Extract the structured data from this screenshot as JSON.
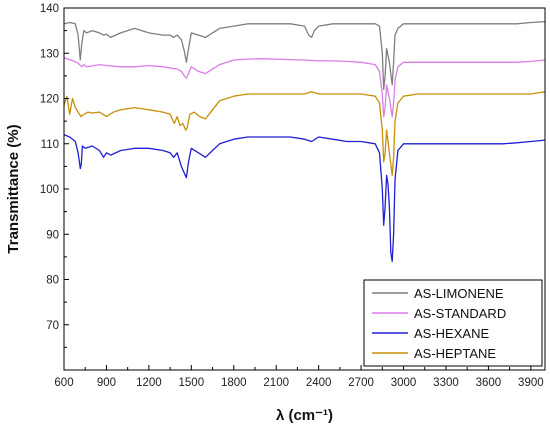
{
  "chart_data": {
    "type": "line",
    "xlabel": "λ (cm⁻¹)",
    "ylabel": "Transmittance (%)",
    "xlim": [
      600,
      4000
    ],
    "ylim": [
      60,
      140
    ],
    "x_ticks": [
      600,
      900,
      1200,
      1500,
      1800,
      2100,
      2400,
      2700,
      3000,
      3300,
      3600,
      3900
    ],
    "y_ticks": [
      70,
      80,
      90,
      100,
      110,
      120,
      130,
      140
    ],
    "x_tick_labels": [
      "600",
      "900",
      "1200",
      "1500",
      "1800",
      "2100",
      "2400",
      "2700",
      "3000",
      "3300",
      "3600",
      "3900"
    ],
    "y_tick_labels": [
      "70",
      "80",
      "90",
      "100",
      "110",
      "120",
      "130",
      "140"
    ],
    "legend_position": "bottom-right",
    "grid": false,
    "series": [
      {
        "name": "AS-LIMONENE",
        "color": "#7f7f7f",
        "x": [
          600,
          640,
          680,
          700,
          715,
          725,
          740,
          760,
          800,
          850,
          880,
          900,
          930,
          1000,
          1100,
          1200,
          1300,
          1350,
          1375,
          1400,
          1430,
          1450,
          1465,
          1480,
          1500,
          1550,
          1600,
          1650,
          1700,
          1800,
          1900,
          2000,
          2100,
          2200,
          2300,
          2330,
          2350,
          2370,
          2400,
          2500,
          2600,
          2700,
          2800,
          2830,
          2850,
          2860,
          2870,
          2880,
          2900,
          2920,
          2930,
          2940,
          2960,
          2980,
          3000,
          3050,
          3100,
          3200,
          3300,
          3400,
          3500,
          3600,
          3700,
          3800,
          3900,
          4000
        ],
        "y": [
          136.5,
          136.8,
          136.5,
          134.0,
          128.5,
          132.0,
          135.0,
          134.5,
          135.0,
          134.5,
          134.0,
          134.2,
          133.5,
          134.5,
          135.5,
          134.5,
          134.0,
          134.0,
          133.5,
          134.0,
          133.0,
          130.5,
          128.0,
          131.0,
          134.5,
          134.0,
          133.5,
          134.5,
          135.5,
          136.0,
          136.5,
          136.5,
          136.5,
          136.5,
          136.0,
          134.0,
          133.5,
          135.0,
          136.0,
          136.5,
          136.5,
          136.5,
          136.5,
          136.0,
          130.0,
          122.0,
          125.0,
          131.0,
          128.0,
          123.0,
          128.0,
          134.0,
          135.5,
          136.0,
          136.5,
          136.5,
          136.5,
          136.5,
          136.5,
          136.5,
          136.5,
          136.5,
          136.5,
          136.5,
          136.8,
          137.0
        ]
      },
      {
        "name": "AS-STANDARD",
        "color": "#d87ee6",
        "x": [
          600,
          650,
          700,
          725,
          740,
          760,
          800,
          850,
          900,
          1000,
          1100,
          1200,
          1300,
          1400,
          1430,
          1450,
          1465,
          1480,
          1500,
          1550,
          1600,
          1650,
          1700,
          1800,
          1900,
          2000,
          2100,
          2200,
          2300,
          2400,
          2500,
          2600,
          2700,
          2800,
          2830,
          2850,
          2860,
          2870,
          2880,
          2900,
          2920,
          2930,
          2940,
          2960,
          3000,
          3100,
          3200,
          3300,
          3400,
          3500,
          3600,
          3700,
          3800,
          3900,
          4000
        ],
        "y": [
          129.0,
          128.5,
          127.8,
          127.0,
          127.5,
          127.0,
          127.2,
          127.5,
          127.3,
          127.0,
          127.0,
          127.3,
          127.0,
          126.5,
          126.0,
          125.0,
          124.5,
          125.5,
          127.0,
          126.0,
          125.5,
          126.5,
          127.5,
          128.5,
          128.7,
          128.8,
          128.7,
          128.6,
          128.5,
          128.3,
          128.3,
          128.2,
          128.0,
          127.5,
          126.0,
          121.0,
          116.0,
          118.0,
          123.0,
          120.0,
          116.0,
          119.0,
          124.0,
          127.0,
          128.0,
          128.0,
          128.0,
          128.0,
          128.0,
          128.0,
          128.0,
          128.0,
          128.0,
          128.2,
          128.5
        ]
      },
      {
        "name": "AS-HEXANE",
        "color": "#1f1fd4",
        "x": [
          600,
          640,
          680,
          700,
          715,
          722,
          730,
          750,
          800,
          850,
          880,
          900,
          930,
          1000,
          1100,
          1200,
          1300,
          1350,
          1375,
          1400,
          1430,
          1450,
          1465,
          1480,
          1500,
          1550,
          1600,
          1650,
          1700,
          1800,
          1900,
          2000,
          2100,
          2200,
          2300,
          2350,
          2400,
          2500,
          2600,
          2700,
          2800,
          2830,
          2850,
          2860,
          2870,
          2880,
          2890,
          2900,
          2910,
          2920,
          2930,
          2940,
          2960,
          3000,
          3100,
          3200,
          3300,
          3400,
          3500,
          3600,
          3700,
          3800,
          3900,
          4000
        ],
        "y": [
          112.0,
          111.5,
          110.5,
          108.0,
          104.5,
          105.5,
          109.5,
          109.0,
          109.5,
          108.5,
          107.0,
          108.0,
          107.5,
          108.5,
          109.0,
          109.0,
          108.5,
          108.0,
          107.0,
          108.0,
          105.0,
          103.5,
          102.5,
          106.0,
          109.0,
          108.0,
          107.0,
          108.5,
          110.0,
          111.0,
          111.5,
          111.5,
          111.5,
          111.5,
          111.0,
          110.5,
          111.5,
          111.0,
          110.5,
          110.5,
          110.0,
          108.0,
          100.0,
          92.0,
          96.0,
          103.0,
          101.0,
          96.0,
          86.0,
          84.0,
          90.0,
          102.0,
          108.5,
          110.0,
          110.0,
          110.0,
          110.0,
          110.0,
          110.0,
          110.0,
          110.0,
          110.2,
          110.5,
          110.8
        ]
      },
      {
        "name": "AS-HEPTANE",
        "color": "#c8900a",
        "x": [
          600,
          620,
          640,
          660,
          680,
          700,
          720,
          740,
          770,
          800,
          850,
          900,
          950,
          1000,
          1100,
          1200,
          1300,
          1350,
          1380,
          1400,
          1420,
          1440,
          1460,
          1470,
          1490,
          1520,
          1560,
          1600,
          1650,
          1700,
          1800,
          1900,
          2000,
          2100,
          2200,
          2300,
          2350,
          2400,
          2500,
          2600,
          2700,
          2800,
          2830,
          2850,
          2860,
          2870,
          2880,
          2900,
          2920,
          2930,
          2940,
          2960,
          3000,
          3100,
          3200,
          3300,
          3400,
          3500,
          3600,
          3700,
          3800,
          3900,
          4000
        ],
        "y": [
          118.5,
          120.5,
          116.5,
          120.0,
          118.0,
          117.0,
          116.0,
          116.5,
          117.0,
          116.8,
          117.0,
          116.0,
          117.0,
          117.5,
          118.0,
          117.5,
          117.0,
          116.5,
          114.5,
          116.0,
          114.0,
          114.5,
          113.0,
          113.5,
          116.5,
          117.0,
          116.0,
          115.5,
          117.5,
          119.5,
          120.5,
          121.0,
          121.0,
          121.0,
          121.0,
          121.0,
          121.5,
          121.0,
          121.0,
          121.0,
          121.0,
          120.5,
          119.0,
          113.0,
          106.0,
          108.0,
          113.0,
          108.0,
          103.0,
          107.0,
          115.0,
          119.0,
          120.5,
          121.0,
          121.0,
          121.0,
          121.0,
          121.0,
          121.0,
          121.0,
          121.0,
          121.0,
          121.5
        ]
      }
    ]
  }
}
